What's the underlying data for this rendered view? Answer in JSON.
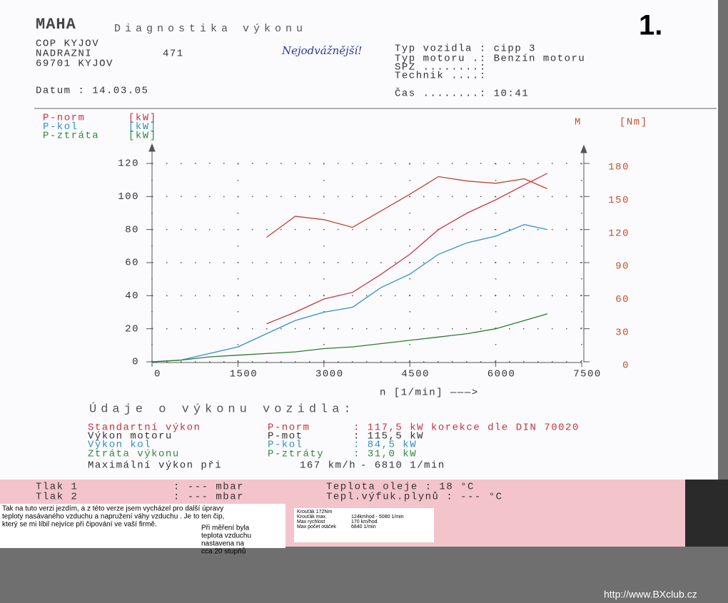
{
  "header": {
    "brand": "MAHA",
    "title": "Diagnostika výkonu",
    "page_number": "1.",
    "address": [
      "COP KYJOV",
      "NADRAZNI",
      "69701 KYJOV"
    ],
    "number": "471",
    "handwritten": "Nejodvážnější!",
    "date": "Datum : 14.03.05",
    "vehicle": [
      "Typ vozidla : cipp 3",
      "Typ motoru .: Benzín motoru",
      "SPZ ........:",
      "Technik ....:",
      "Čas ........: 10:41"
    ]
  },
  "chart_data": {
    "type": "line",
    "x_label": "n [1/min] ———>",
    "x": [
      0,
      500,
      1000,
      1500,
      2000,
      2500,
      3000,
      3500,
      4000,
      4500,
      5000,
      5500,
      6000,
      6500,
      6900
    ],
    "xlim": [
      0,
      7500
    ],
    "xticks": [
      0,
      1500,
      3000,
      4500,
      6000,
      7500
    ],
    "ylim": [
      0,
      120
    ],
    "yticks": [
      0,
      20,
      40,
      60,
      80,
      100,
      120
    ],
    "y2lim": [
      0,
      180
    ],
    "y2ticks": [
      0,
      30,
      60,
      90,
      120,
      150,
      180
    ],
    "y2_unit": "[Nm]",
    "grid": true,
    "series": [
      {
        "name": "P-norm",
        "unit": "[kW]",
        "color": "#d2343e",
        "values": [
          null,
          null,
          null,
          null,
          23,
          30,
          38,
          42,
          53,
          65,
          80,
          90,
          98,
          107,
          114
        ]
      },
      {
        "name": "P-kol",
        "unit": "[kW]",
        "color": "#2f8fd0",
        "values": [
          0,
          1,
          5,
          9,
          17,
          25,
          30,
          33,
          45,
          53,
          65,
          72,
          76,
          83,
          80
        ]
      },
      {
        "name": "P-ztráta",
        "unit": "[kW]",
        "color": "#2e7a32",
        "values": [
          0,
          1,
          3,
          4,
          5,
          6,
          8,
          9,
          11,
          13,
          15,
          17,
          20,
          25,
          29
        ]
      },
      {
        "name": "M",
        "axis": "y2",
        "color": "#c8402c",
        "values": [
          null,
          null,
          null,
          null,
          113,
          132,
          129,
          122,
          137,
          152,
          168,
          164,
          162,
          166,
          157
        ]
      }
    ]
  },
  "results": {
    "title": "Údaje o výkonu vozidla:",
    "rows": [
      [
        "Standartní výkon",
        "P-norm",
        ": 117,5 kW korekce dle DIN 70020"
      ],
      [
        "Výkon motoru",
        "P-mot",
        ": 115,5 kW"
      ],
      [
        "Výkon kol",
        "P-kol",
        ": 84,5 kW"
      ],
      [
        "Ztráta výkonu",
        "P-ztráty",
        ": 31,0 kW"
      ],
      [
        "Maximální výkon při",
        "167 km/h",
        "- 6810 1/min"
      ],
      [
        "Tlak 1",
        ": --- mbar",
        "Teplota oleje : 18 °C"
      ],
      [
        "Tlak 2",
        ": --- mbar",
        "Tepl.výfuk.plynů : --- °C"
      ]
    ]
  },
  "notes": [
    [
      "Tak na tuto verzi jezdím, a z této verze jsem vycházel pro další úpravy",
      "teploty nasávaného vzduchu a napružení váhy vzduchu . Je to ten čip,",
      "který se mi líbil nejvíce při čipování ve vaší firmě."
    ],
    [
      "Při měření byla",
      "teplota vzduchu",
      "nastavena na",
      "cca 20 stupňů"
    ]
  ],
  "specs": [
    [
      "Krouťák 172Nm",
      ""
    ],
    [
      "Krouťák max.",
      "124kmhod - 5080 1/min"
    ],
    [
      "Max rychlost",
      "170 km/hod"
    ],
    [
      "Max počet otáček",
      "6840 1/min"
    ]
  ],
  "footer": "http://www.BXclub.cz"
}
